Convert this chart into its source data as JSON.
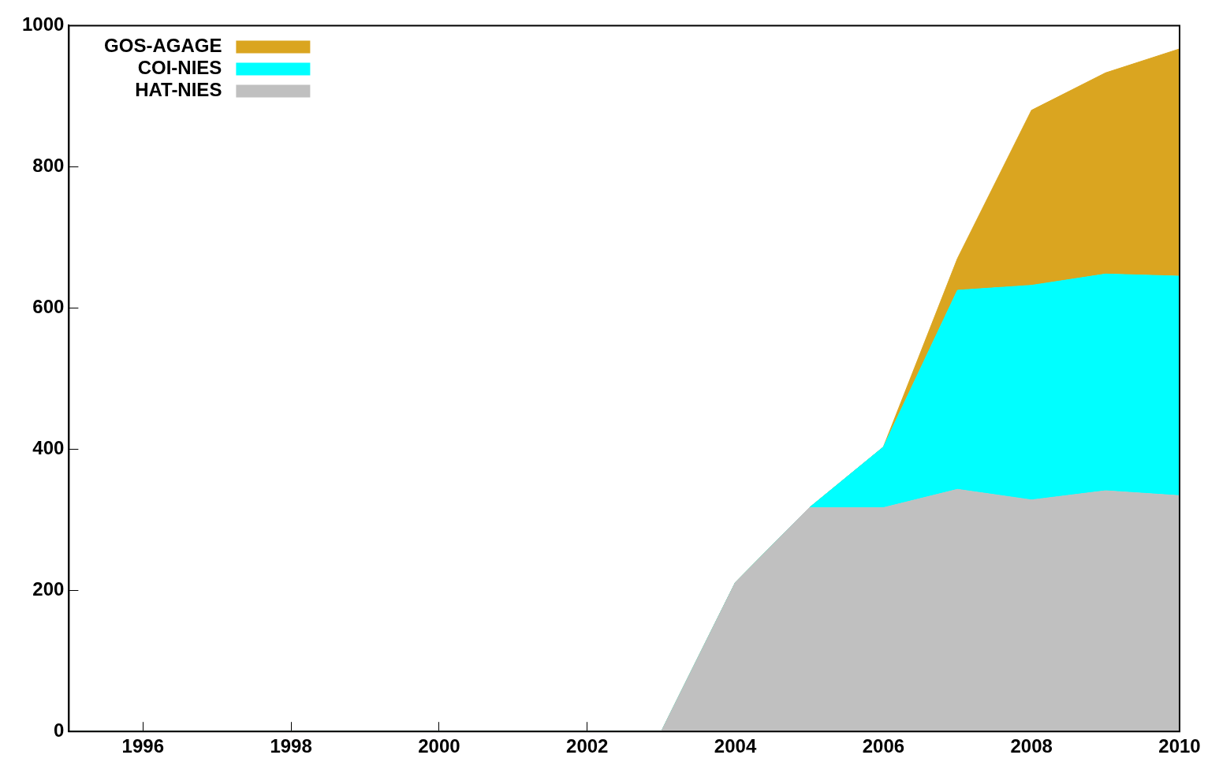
{
  "chart_data": {
    "type": "area",
    "stacked": true,
    "x": [
      1995,
      1996,
      1997,
      1998,
      1999,
      2000,
      2001,
      2002,
      2003,
      2004,
      2005,
      2006,
      2007,
      2008,
      2009,
      2010
    ],
    "series": [
      {
        "name": "HAT-NIES",
        "color": "#c0c0c0",
        "values": [
          0,
          0,
          0,
          0,
          0,
          0,
          0,
          0,
          0,
          211,
          317,
          317,
          343,
          328,
          341,
          334
        ]
      },
      {
        "name": "COI-NIES",
        "color": "#00ffff",
        "values": [
          0,
          0,
          0,
          0,
          0,
          0,
          0,
          0,
          0,
          0,
          0,
          86,
          282,
          304,
          307,
          311
        ]
      },
      {
        "name": "GOS-AGAGE",
        "color": "#daa520",
        "values": [
          0,
          0,
          0,
          0,
          0,
          0,
          0,
          0,
          0,
          0,
          0,
          0,
          45,
          248,
          285,
          322
        ]
      }
    ],
    "xlim": [
      1995,
      2010
    ],
    "xticks": [
      1996,
      1998,
      2000,
      2002,
      2004,
      2006,
      2008,
      2010
    ],
    "ylim": [
      0,
      1000
    ],
    "yticks": [
      0,
      200,
      400,
      600,
      800,
      1000
    ],
    "grid": false,
    "legend": "top left",
    "marker": "none"
  }
}
